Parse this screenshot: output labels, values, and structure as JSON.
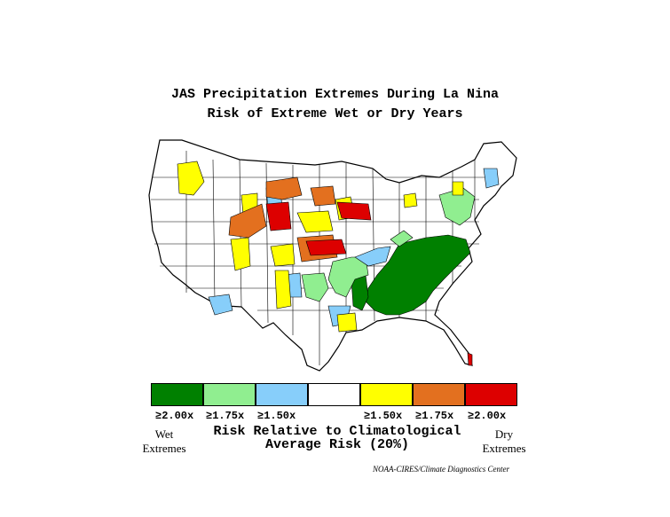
{
  "title_line1": "JAS Precipitation Extremes During La Nina",
  "title_line2": "Risk of Extreme Wet or Dry Years",
  "legend": {
    "classes": [
      {
        "label": "≥2.00x",
        "color": "#008000"
      },
      {
        "label": "≥1.75x",
        "color": "#90ee90"
      },
      {
        "label": "≥1.50x",
        "color": "#87cefa"
      },
      {
        "label": "",
        "color": "#ffffff"
      },
      {
        "label": "≥1.50x",
        "color": "#ffff00"
      },
      {
        "label": "≥1.75x",
        "color": "#e3701f"
      },
      {
        "label": "≥2.00x",
        "color": "#dd0000"
      }
    ],
    "wet_label": "Wet\nExtremes",
    "dry_label": "Dry\nExtremes",
    "caption_line1": "Risk Relative to Climatological",
    "caption_line2": "Average Risk (20%)"
  },
  "credit": "NOAA-CIRES/Climate Diagnostics Center",
  "map": {
    "region": "contiguous-united-states",
    "regions_colored": {
      "wet_strong": "southeast-us",
      "wet_moderate": "gulf-coast-and-mid-atlantic",
      "wet_weak": "texas-coast-and-ohio-valley",
      "dry_weak": "northern-rockies-and-plains",
      "dry_moderate": "central-rockies",
      "dry_strong": "central-plains"
    }
  }
}
